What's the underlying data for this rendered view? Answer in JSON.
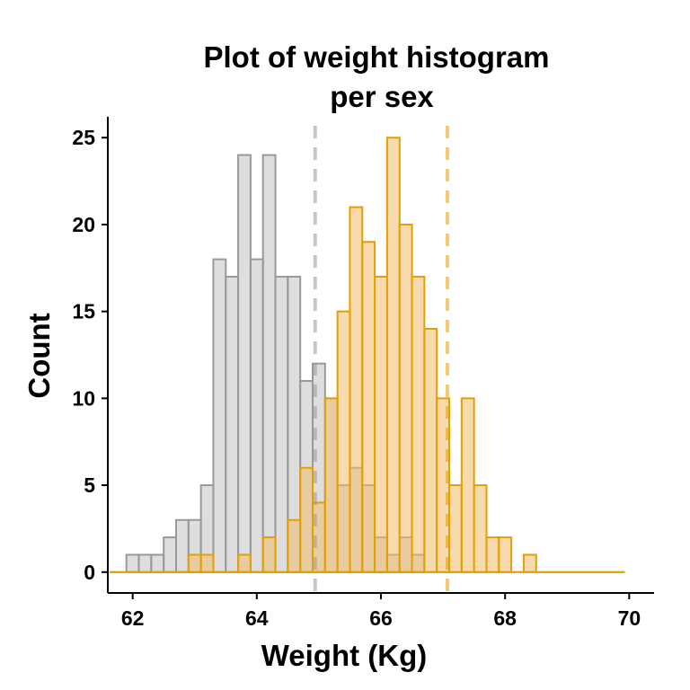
{
  "chart_data": {
    "type": "histogram",
    "title_line1": "Plot of weight histogram",
    "title_line2": "per sex",
    "xlabel": "Weight (Kg)",
    "ylabel": "Count",
    "xlim": [
      61.6,
      70.4
    ],
    "ylim": [
      -1.2,
      26.2
    ],
    "xticks": [
      "62",
      "64",
      "66",
      "68",
      "70"
    ],
    "yticks": [
      "0",
      "5",
      "10",
      "15",
      "20",
      "25"
    ],
    "grid": false,
    "legend": "none",
    "bin_start": 61.9,
    "bin_width": 0.2,
    "series": [
      {
        "color": "#999999",
        "fill_color": "#C2C2C2",
        "mean": 64.94,
        "values": [
          1,
          1,
          1,
          2,
          3,
          3,
          5,
          18,
          17,
          24,
          18,
          24,
          17,
          17,
          11,
          12,
          10,
          5,
          6,
          5,
          2,
          1,
          2,
          1,
          0,
          0,
          0,
          0,
          0,
          0,
          0,
          0,
          0,
          0,
          0,
          0,
          0,
          0,
          0,
          0
        ]
      },
      {
        "color": "#E69F00",
        "fill_color": "#F0BD6E",
        "mean": 67.07,
        "values": [
          0,
          0,
          0,
          0,
          0,
          1,
          1,
          0,
          0,
          1,
          0,
          2,
          0,
          3,
          6,
          4,
          10,
          15,
          21,
          19,
          17,
          25,
          20,
          17,
          14,
          10,
          5,
          10,
          5,
          2,
          2,
          0,
          1,
          0,
          0,
          0,
          0,
          0,
          0,
          0
        ]
      }
    ]
  }
}
